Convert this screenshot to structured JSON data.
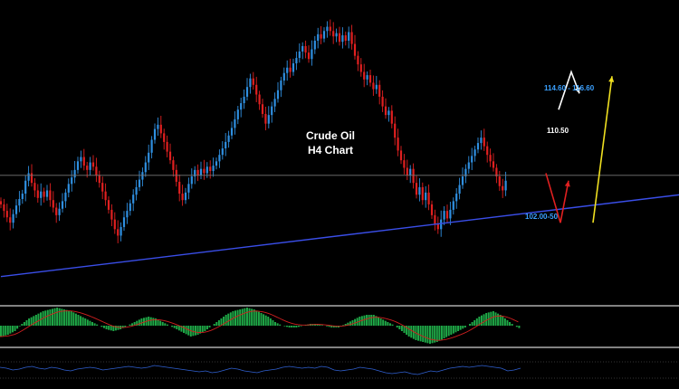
{
  "colors": {
    "background": "#000000",
    "bull_candle": "#2f8fe0",
    "bear_candle": "#e02020",
    "trendline": "#3a4ee8",
    "histogram": "#1fa847",
    "signal_line": "#d02020",
    "oscillator": "#3060d0",
    "scenario_bearish": "#e02020",
    "scenario_bullish": "#f0e020",
    "scenario_white": "#ffffff",
    "label_blue": "#3aa0ff"
  },
  "chart_data": [
    {
      "type": "candlestick",
      "title": "Crude Oil",
      "subtitle": "H4 Chart",
      "grid": false,
      "legend": "none",
      "candles_close": [
        105.2,
        104.6,
        104.0,
        103.5,
        104.3,
        105.1,
        105.7,
        106.2,
        107.4,
        108.1,
        107.2,
        106.5,
        105.8,
        106.4,
        105.9,
        106.5,
        105.6,
        104.9,
        104.2,
        104.8,
        105.5,
        106.3,
        107.1,
        107.7,
        108.4,
        109.2,
        109.6,
        108.8,
        108.4,
        109.1,
        108.7,
        107.9,
        107.2,
        106.4,
        105.6,
        104.7,
        103.8,
        102.9,
        102.3,
        103.1,
        104.0,
        104.6,
        105.3,
        106.1,
        106.8,
        107.5,
        108.2,
        109.1,
        110.0,
        111.2,
        112.2,
        112.6,
        111.8,
        111.0,
        110.1,
        109.3,
        108.4,
        107.3,
        106.2,
        105.6,
        106.3,
        107.1,
        107.8,
        108.4,
        107.9,
        108.5,
        108.1,
        108.7,
        108.3,
        108.8,
        109.2,
        109.8,
        110.4,
        111.0,
        111.6,
        112.3,
        113.1,
        114.0,
        114.6,
        115.2,
        116.1,
        116.9,
        116.3,
        115.4,
        114.5,
        113.6,
        112.7,
        113.5,
        114.3,
        115.0,
        115.8,
        116.7,
        117.4,
        117.9,
        117.5,
        118.3,
        118.8,
        119.4,
        119.9,
        119.3,
        118.7,
        119.6,
        120.4,
        121.0,
        120.6,
        121.3,
        121.7,
        121.3,
        120.8,
        121.1,
        120.3,
        120.9,
        120.4,
        121.2,
        120.1,
        119.0,
        118.2,
        117.5,
        116.8,
        117.2,
        116.5,
        115.9,
        116.3,
        115.2,
        114.3,
        113.5,
        113.9,
        112.7,
        111.4,
        110.2,
        109.3,
        108.6,
        107.9,
        108.5,
        107.2,
        106.1,
        106.8,
        105.6,
        106.3,
        105.2,
        104.2,
        103.4,
        102.9,
        103.8,
        104.6,
        103.9,
        104.7,
        105.5,
        106.2,
        107.0,
        107.8,
        108.5,
        109.1,
        109.7,
        110.3,
        110.9,
        111.4,
        110.6,
        109.8,
        109.2,
        108.6,
        107.8,
        106.9,
        106.5,
        107.4
      ],
      "reference_level": 107.9,
      "trendline": {
        "from": {
          "bar": 0,
          "price": 98.5
        },
        "to": {
          "bar": 180,
          "price": 104.7
        }
      },
      "annotations": [
        {
          "text": "114.60 - 116.60",
          "color": "#3aa0ff"
        },
        {
          "text": "110.50",
          "color": "#ffffff"
        },
        {
          "text": "102.00-50",
          "color": "#3aa0ff"
        }
      ],
      "scenario_arrows": [
        {
          "color": "#e02020",
          "path": [
            [
              108.1,
              "start"
            ],
            [
              103.5,
              "low"
            ],
            [
              107.4,
              "end"
            ]
          ]
        },
        {
          "color": "#f0e020",
          "path": [
            [
              103.5,
              "start"
            ],
            [
              117.1,
              "end"
            ]
          ]
        },
        {
          "color": "#ffffff",
          "path": [
            [
              114.0,
              "start"
            ],
            [
              117.5,
              "high"
            ],
            [
              115.5,
              "end"
            ]
          ]
        }
      ]
    },
    {
      "type": "histogram",
      "title": "",
      "values": [
        -0.6,
        -0.5,
        -0.3,
        0.1,
        0.4,
        0.6,
        0.8,
        0.9,
        1.0,
        0.9,
        0.8,
        0.6,
        0.4,
        0.2,
        0.0,
        -0.2,
        -0.3,
        -0.2,
        0.0,
        0.2,
        0.4,
        0.5,
        0.4,
        0.2,
        0.0,
        -0.2,
        -0.4,
        -0.6,
        -0.5,
        -0.3,
        0.0,
        0.3,
        0.6,
        0.8,
        0.9,
        1.0,
        0.9,
        0.7,
        0.5,
        0.2,
        0.0,
        -0.1,
        -0.1,
        0.0,
        0.1,
        0.1,
        0.0,
        -0.1,
        -0.1,
        0.1,
        0.3,
        0.5,
        0.6,
        0.6,
        0.4,
        0.2,
        0.0,
        -0.3,
        -0.6,
        -0.8,
        -0.9,
        -1.0,
        -0.9,
        -0.7,
        -0.5,
        -0.3,
        -0.1,
        0.2,
        0.5,
        0.7,
        0.8,
        0.6,
        0.3,
        0.0,
        -0.2
      ],
      "ylim": [
        -1.1,
        1.1
      ]
    },
    {
      "type": "line",
      "title": "",
      "values": [
        0.2,
        0.1,
        -0.1,
        0.0,
        0.2,
        0.3,
        0.1,
        0.0,
        0.2,
        0.1,
        -0.1,
        -0.2,
        0.0,
        0.1,
        0.2,
        0.1,
        -0.1,
        0.0,
        0.1,
        0.2,
        0.3,
        0.2,
        0.1,
        0.2,
        0.4,
        0.3,
        0.2,
        0.1,
        0.0,
        -0.1,
        -0.2,
        -0.3,
        -0.2,
        -0.4,
        -0.3,
        -0.1,
        0.1,
        0.0,
        -0.2,
        -0.3,
        -0.4,
        -0.2,
        -0.1,
        0.0,
        0.2,
        0.3,
        0.2,
        0.1,
        0.2,
        0.1,
        0.3,
        0.2,
        -0.1,
        -0.2,
        -0.1,
        0.0,
        0.2,
        0.1,
        0.0,
        -0.2,
        -0.4,
        -0.5,
        -0.4,
        -0.3,
        -0.5,
        -0.6,
        -0.4,
        -0.2,
        -0.3,
        -0.1,
        0.1,
        0.2,
        0.3,
        0.2,
        0.3,
        0.4,
        0.3,
        0.2,
        0.1,
        -0.2,
        -0.1,
        0.1
      ],
      "ylim": [
        -1,
        1
      ]
    }
  ]
}
